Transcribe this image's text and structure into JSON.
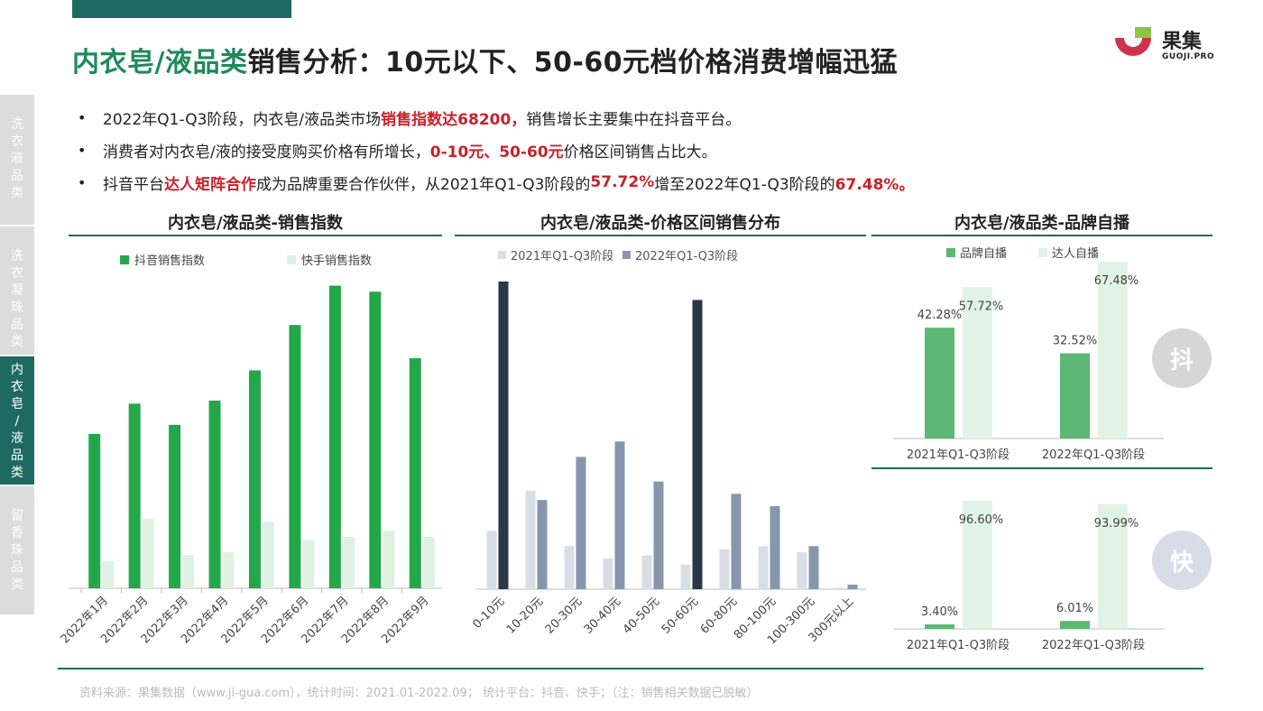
{
  "title": {
    "highlight": "内衣皂/液品类",
    "rest": "销售分析：10元以下、50-60元档价格消费增幅迅猛"
  },
  "logo": {
    "cn": "果集",
    "en": "GUOJI.PRO"
  },
  "sidebar": [
    {
      "label": "洗衣液品类",
      "chars": [
        "洗",
        "衣",
        "液",
        "品",
        "类"
      ],
      "active": false
    },
    {
      "label": "洗衣凝珠品类",
      "chars": [
        "洗",
        "衣",
        "凝",
        "珠",
        "品",
        "类"
      ],
      "active": false
    },
    {
      "label": "内衣皂/液品类",
      "chars": [
        "内",
        "衣",
        "皂",
        "/",
        "液",
        "品",
        "类"
      ],
      "active": true
    },
    {
      "label": "留香珠品类",
      "chars": [
        "留",
        "香",
        "珠",
        "品",
        "类"
      ],
      "active": false
    }
  ],
  "bullets": [
    {
      "marker": "•",
      "t1": "2022年Q1-Q3阶段，内衣皂/液品类市场",
      "r1": "销售指数达68200，",
      "t2": "销售增长主要集中在抖音平台。",
      "r2": "",
      "t3": "",
      "r3": ""
    },
    {
      "marker": "•",
      "t1": "消费者对内衣皂/液的接受度购买价格有所增长，",
      "r1": "0-10元、50-60元",
      "t2": "价格区间销售占比大。",
      "r2": "",
      "t3": "",
      "r3": ""
    },
    {
      "marker": "•",
      "t1": "抖音平台",
      "r1": "达人矩阵合作",
      "t2": "成为品牌重要合作伙伴，从2021年Q1-Q3阶段的",
      "r2": "57.72%",
      "t3": "增至2022年Q1-Q3阶段的",
      "r3": "67.48%。"
    }
  ],
  "colors": {
    "accent": "#1e6a63",
    "douyin_green": "#22a84a",
    "kuaishou_light": "#dff1e3",
    "q2021": "#d9dee6",
    "q2022": "#8796ad",
    "highlight_dark": "#2b3646",
    "brand_green": "#5cb874",
    "kol_light": "#e1f3e6",
    "red": "#c9212b"
  },
  "panels": {
    "p1_title": "内衣皂/液品类-销售指数",
    "p2_title": "内衣皂/液品类-价格区间销售分布",
    "p3_title": "内衣皂/液品类-品牌自播"
  },
  "circles": {
    "douyin": "抖",
    "kuaishou": "快"
  },
  "footer": "资料来源：果集数据（www.ji-gua.com），统计时间：2021.01-2022.09；    统计平台：抖音、快手；（注：销售相关数据已脱敏）",
  "chart_data": [
    {
      "type": "bar",
      "title": "内衣皂/液品类-销售指数",
      "categories": [
        "2022年1月",
        "2022年2月",
        "2022年3月",
        "2022年4月",
        "2022年5月",
        "2022年6月",
        "2022年7月",
        "2022年8月",
        "2022年9月"
      ],
      "series": [
        {
          "name": "抖音销售指数",
          "values": [
            51,
            61,
            54,
            62,
            72,
            87,
            100,
            98,
            76
          ]
        },
        {
          "name": "快手销售指数",
          "values": [
            9,
            23,
            11,
            12,
            22,
            16,
            17,
            19,
            17
          ]
        }
      ],
      "ylim": [
        0,
        110
      ],
      "legend": "top"
    },
    {
      "type": "bar",
      "title": "内衣皂/液品类-价格区间销售分布",
      "categories": [
        "0-10元",
        "10-20元",
        "20-30元",
        "30-40元",
        "40-50元",
        "50-60元",
        "60-80元",
        "80-100元",
        "100-300元",
        "300元以上"
      ],
      "series": [
        {
          "name": "2021年Q1-Q3阶段",
          "values": [
            19,
            32,
            14,
            10,
            11,
            8,
            13,
            14,
            12,
            0.5
          ]
        },
        {
          "name": "2022年Q1-Q3阶段",
          "values": [
            100,
            29,
            43,
            48,
            35,
            94,
            31,
            27,
            14,
            1.5
          ]
        }
      ],
      "highlight_bars": [
        0,
        5
      ],
      "ylim": [
        0,
        105
      ],
      "legend": "top-left"
    },
    {
      "type": "bar",
      "title": "抖",
      "categories": [
        "2021年Q1-Q3阶段",
        "2022年Q1-Q3阶段"
      ],
      "series": [
        {
          "name": "品牌自播",
          "values": [
            42.28,
            32.52
          ],
          "labels": [
            "42.28%",
            "32.52%"
          ]
        },
        {
          "name": "达人自播",
          "values": [
            57.72,
            67.48
          ],
          "labels": [
            "57.72%",
            "67.48%"
          ]
        }
      ],
      "ylim": [
        0,
        67.48
      ],
      "legend": "top"
    },
    {
      "type": "bar",
      "title": "快",
      "categories": [
        "2021年Q1-Q3阶段",
        "2022年Q1-Q3阶段"
      ],
      "series": [
        {
          "name": "品牌自播",
          "values": [
            3.4,
            6.01
          ],
          "labels": [
            "3.40%",
            "6.01%"
          ]
        },
        {
          "name": "达人自播",
          "values": [
            96.6,
            93.99
          ],
          "labels": [
            "96.60%",
            "93.99%"
          ]
        }
      ],
      "ylim": [
        0,
        96.6
      ],
      "legend": "none"
    }
  ]
}
